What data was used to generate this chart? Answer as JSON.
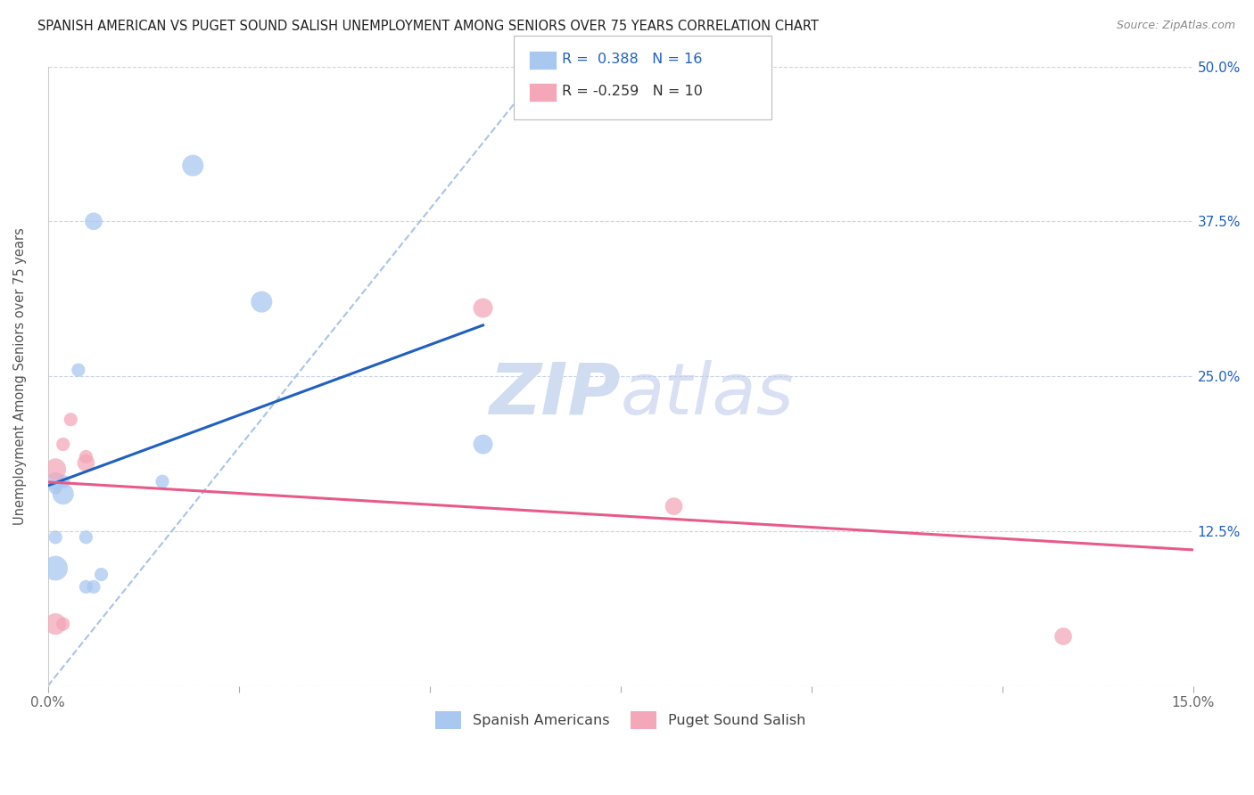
{
  "title": "SPANISH AMERICAN VS PUGET SOUND SALISH UNEMPLOYMENT AMONG SENIORS OVER 75 YEARS CORRELATION CHART",
  "source": "Source: ZipAtlas.com",
  "ylabel": "Unemployment Among Seniors over 75 years",
  "xlim": [
    0.0,
    0.15
  ],
  "ylim": [
    0.0,
    0.5
  ],
  "xticks": [
    0.0,
    0.025,
    0.05,
    0.075,
    0.1,
    0.125,
    0.15
  ],
  "yticks": [
    0.0,
    0.125,
    0.25,
    0.375,
    0.5
  ],
  "xticklabels": [
    "0.0%",
    "",
    "",
    "",
    "",
    "",
    "15.0%"
  ],
  "yticklabels_right": [
    "",
    "12.5%",
    "25.0%",
    "37.5%",
    "50.0%"
  ],
  "blue_R": "0.388",
  "blue_N": "16",
  "pink_R": "-0.259",
  "pink_N": "10",
  "blue_color": "#A8C8F0",
  "pink_color": "#F4A7B9",
  "blue_line_color": "#2060C0",
  "pink_line_color": "#E85A8A",
  "diagonal_color": "#A8C4E8",
  "watermark_zip": "ZIP",
  "watermark_atlas": "atlas",
  "blue_points": [
    [
      0.001,
      0.095
    ],
    [
      0.001,
      0.12
    ],
    [
      0.001,
      0.16
    ],
    [
      0.001,
      0.165
    ],
    [
      0.002,
      0.155
    ],
    [
      0.002,
      0.165
    ],
    [
      0.004,
      0.255
    ],
    [
      0.005,
      0.12
    ],
    [
      0.005,
      0.08
    ],
    [
      0.006,
      0.375
    ],
    [
      0.006,
      0.08
    ],
    [
      0.007,
      0.09
    ],
    [
      0.015,
      0.165
    ],
    [
      0.019,
      0.42
    ],
    [
      0.028,
      0.31
    ],
    [
      0.057,
      0.195
    ]
  ],
  "pink_points": [
    [
      0.001,
      0.175
    ],
    [
      0.001,
      0.05
    ],
    [
      0.002,
      0.05
    ],
    [
      0.002,
      0.195
    ],
    [
      0.003,
      0.215
    ],
    [
      0.005,
      0.18
    ],
    [
      0.005,
      0.185
    ],
    [
      0.057,
      0.305
    ],
    [
      0.082,
      0.145
    ],
    [
      0.133,
      0.04
    ]
  ],
  "blue_sizes": [
    400,
    120,
    120,
    220,
    300,
    120,
    120,
    120,
    120,
    200,
    120,
    120,
    120,
    300,
    300,
    250
  ],
  "pink_sizes": [
    300,
    300,
    120,
    120,
    120,
    200,
    120,
    250,
    200,
    200
  ]
}
